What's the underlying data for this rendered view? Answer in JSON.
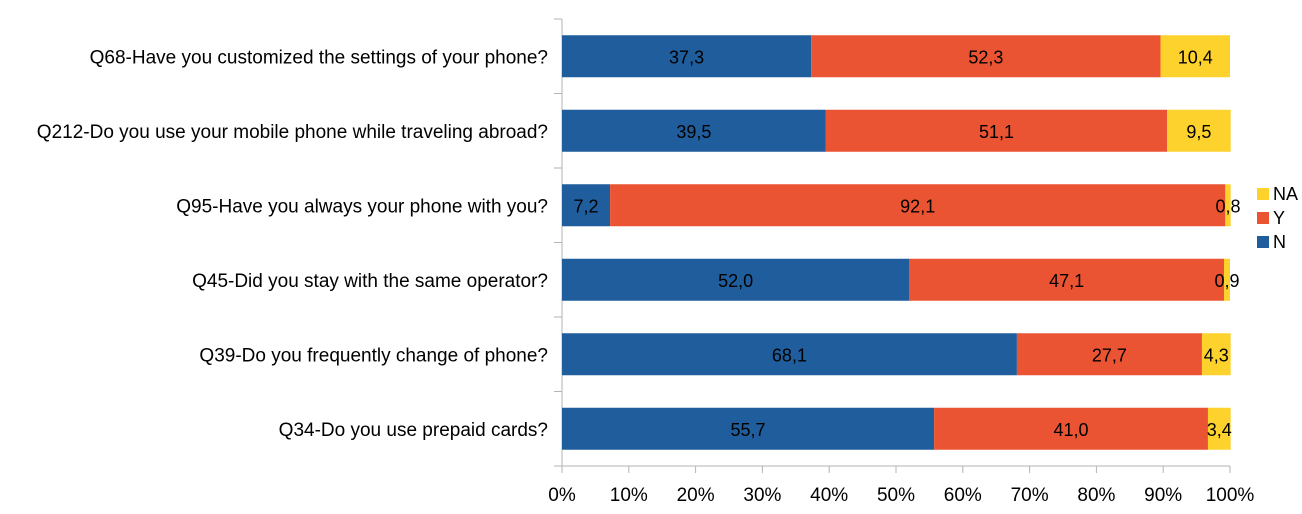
{
  "chart_data": {
    "type": "bar",
    "orientation": "horizontal",
    "stacked": true,
    "percent_stacked": true,
    "categories": [
      "Q68-Have you customized the settings of your phone?",
      "Q212-Do you use your mobile phone while traveling abroad?",
      "Q95-Have you always your phone with you?",
      "Q45-Did you stay with the same operator?",
      "Q39-Do you frequently change of phone?",
      "Q34-Do you use prepaid cards?"
    ],
    "series": [
      {
        "name": "N",
        "color": "#1f5d9c",
        "values": [
          37.3,
          39.5,
          7.2,
          52.0,
          68.1,
          55.7
        ],
        "labels": [
          "37,3",
          "39,5",
          "7,2",
          "52,0",
          "68,1",
          "55,7"
        ]
      },
      {
        "name": "Y",
        "color": "#ea5433",
        "values": [
          52.3,
          51.1,
          92.1,
          47.1,
          27.7,
          41.0
        ],
        "labels": [
          "52,3",
          "51,1",
          "92,1",
          "47,1",
          "27,7",
          "41,0"
        ]
      },
      {
        "name": "NA",
        "color": "#fdd22c",
        "values": [
          10.4,
          9.5,
          0.8,
          0.9,
          4.3,
          3.4
        ],
        "labels": [
          "10,4",
          "9,5",
          "0,8",
          "0,9",
          "4,3",
          "3,4"
        ]
      }
    ],
    "xlim": [
      0,
      100
    ],
    "x_ticks": [
      "0%",
      "10%",
      "20%",
      "30%",
      "40%",
      "50%",
      "60%",
      "70%",
      "80%",
      "90%",
      "100%"
    ],
    "legend": {
      "entries": [
        "NA",
        "Y",
        "N"
      ],
      "placement": "right"
    },
    "grid": false
  }
}
